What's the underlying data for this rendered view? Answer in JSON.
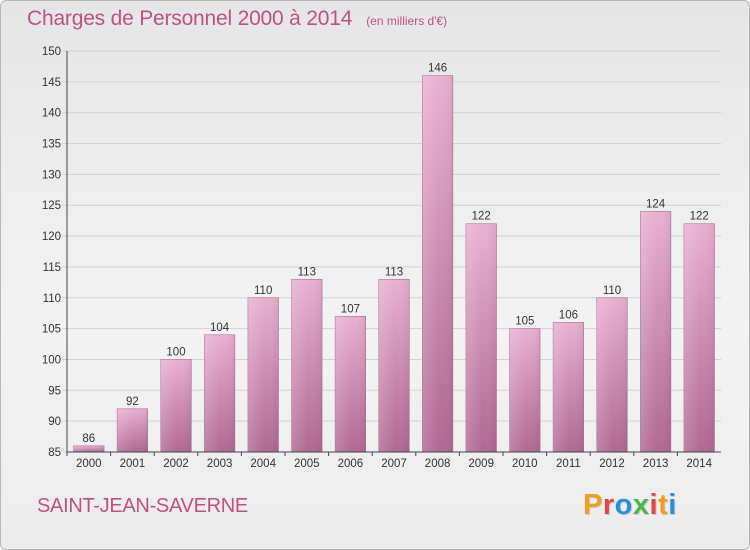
{
  "title": "Charges de Personnel 2000 à 2014",
  "subtitle": "(en milliers d'€)",
  "commune": "SAINT-JEAN-SAVERNE",
  "logo_text": "Proxiti",
  "colors": {
    "accent": "#c05084",
    "bar_light": "#e6a9cd",
    "bar_dark": "#b06893",
    "logo": [
      "#f0a020",
      "#e04848",
      "#2a8fd8",
      "#4ab84a",
      "#e04848",
      "#f0a020",
      "#2a8fd8"
    ]
  },
  "chart_data": {
    "type": "bar",
    "title": "Charges de Personnel 2000 à 2014",
    "subtitle": "(en milliers d'€)",
    "categories": [
      "2000",
      "2001",
      "2002",
      "2003",
      "2004",
      "2005",
      "2006",
      "2007",
      "2008",
      "2009",
      "2010",
      "2011",
      "2012",
      "2013",
      "2014"
    ],
    "values": [
      86,
      92,
      100,
      104,
      110,
      113,
      107,
      113,
      146,
      122,
      105,
      106,
      110,
      124,
      122
    ],
    "ylim": [
      85,
      150
    ],
    "yticks": [
      85,
      90,
      95,
      100,
      105,
      110,
      115,
      120,
      125,
      130,
      135,
      140,
      145,
      150
    ],
    "grid": "horizontal",
    "data_labels": true
  }
}
